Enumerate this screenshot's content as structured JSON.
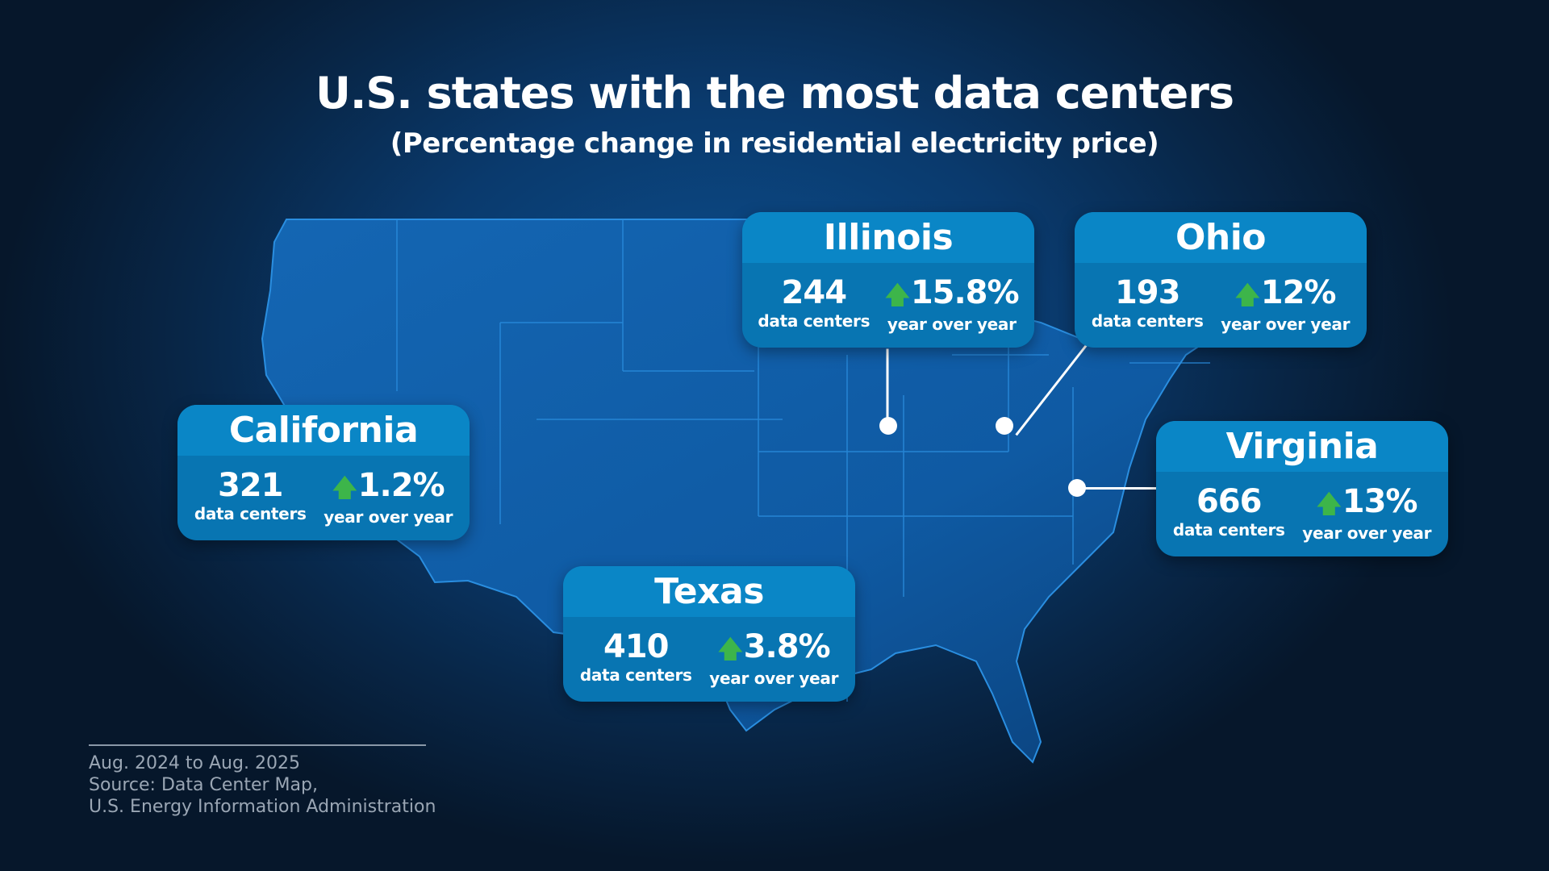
{
  "title": "U.S. states with the most data centers",
  "subtitle": "(Percentage change in residential electricity price)",
  "colors": {
    "card_header": "#0a86c6",
    "card_body": "#0875b2",
    "arrow_up": "#3db54a",
    "background": "#082647"
  },
  "states": [
    {
      "name": "Illinois",
      "data_centers": "244",
      "data_centers_label": "data centers",
      "change": "15.8%",
      "change_label": "year over year",
      "direction": "up"
    },
    {
      "name": "Ohio",
      "data_centers": "193",
      "data_centers_label": "data centers",
      "change": "12%",
      "change_label": "year over year",
      "direction": "up"
    },
    {
      "name": "California",
      "data_centers": "321",
      "data_centers_label": "data centers",
      "change": "1.2%",
      "change_label": "year over year",
      "direction": "up"
    },
    {
      "name": "Virginia",
      "data_centers": "666",
      "data_centers_label": "data centers",
      "change": "13%",
      "change_label": "year over year",
      "direction": "up"
    },
    {
      "name": "Texas",
      "data_centers": "410",
      "data_centers_label": "data centers",
      "change": "3.8%",
      "change_label": "year over year",
      "direction": "up"
    }
  ],
  "footer": {
    "period": "Aug. 2024 to Aug. 2025",
    "source_line1": "Source: Data Center Map,",
    "source_line2": "U.S. Energy Information Administration"
  }
}
